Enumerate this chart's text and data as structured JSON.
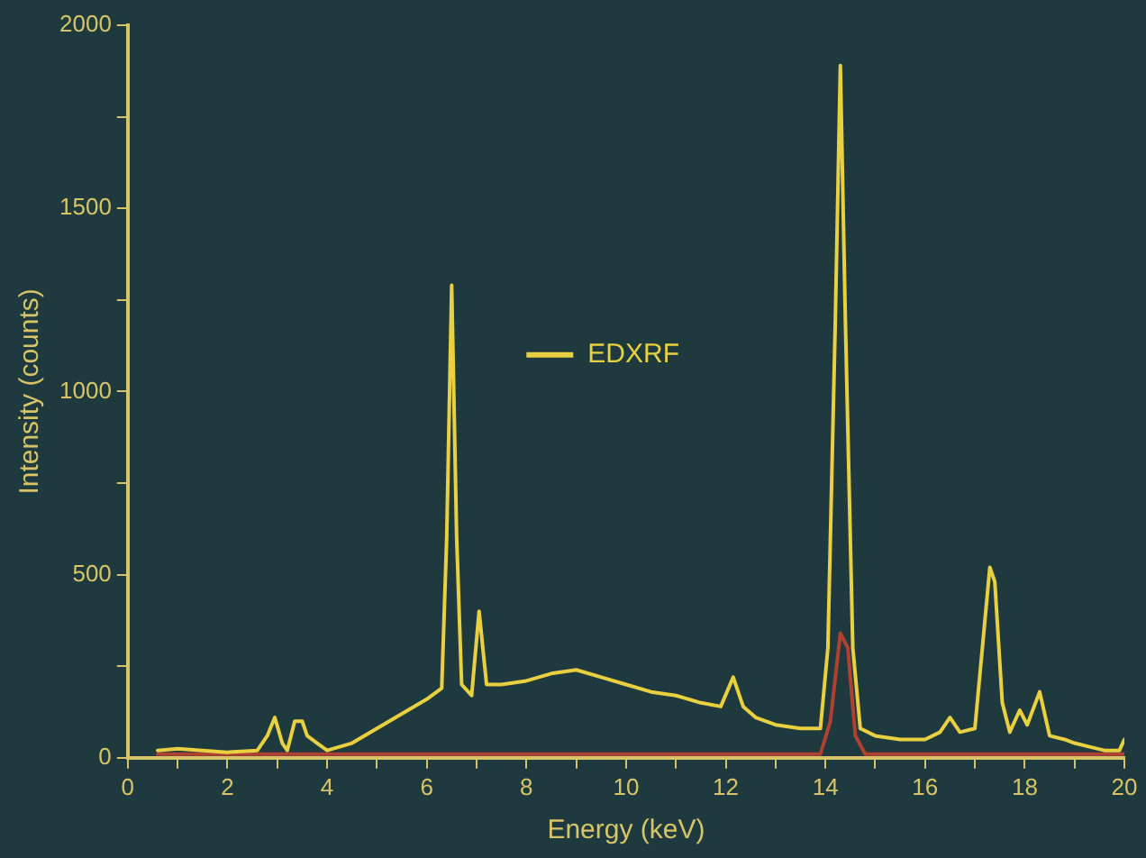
{
  "chart_data": {
    "type": "line",
    "xlabel": "Energy (keV)",
    "ylabel": "Intensity (counts)",
    "xlim": [
      0,
      20
    ],
    "xticks": [
      0,
      {
        "value": 1,
        "label": null
      },
      2,
      {
        "value": 3,
        "label": null
      },
      4,
      {
        "value": 5,
        "label": null
      },
      6,
      {
        "value": 7,
        "label": null
      },
      8,
      {
        "value": 9,
        "label": null
      },
      10,
      {
        "value": 11,
        "label": null
      },
      12,
      {
        "value": 13,
        "label": null
      },
      14,
      {
        "value": 15,
        "label": null
      },
      16,
      {
        "value": 17,
        "label": null
      },
      18,
      {
        "value": 19,
        "label": null
      },
      20
    ],
    "ylim": [
      0,
      2000
    ],
    "yticks": [
      0,
      {
        "value": 250,
        "label": null
      },
      500,
      {
        "value": 750,
        "label": null
      },
      1000,
      {
        "value": 1250,
        "label": null
      },
      1500,
      {
        "value": 1750,
        "label": null
      },
      2000
    ],
    "legend": "center",
    "marker": "none",
    "line_style": "solid",
    "series": [
      {
        "name": "EDXRF",
        "color": "#e8d040",
        "x": [
          0.6,
          1,
          2,
          2.6,
          2.8,
          2.95,
          3.1,
          3.2,
          3.35,
          3.5,
          3.6,
          3.8,
          4,
          4.5,
          5,
          5.5,
          6,
          6.3,
          6.4,
          6.5,
          6.6,
          6.7,
          6.9,
          7.05,
          7.2,
          7.5,
          8,
          8.5,
          9,
          9.5,
          10,
          10.5,
          11,
          11.5,
          11.9,
          12.15,
          12.35,
          12.6,
          13,
          13.5,
          13.9,
          14.05,
          14.2,
          14.3,
          14.4,
          14.55,
          14.7,
          15,
          15.5,
          16,
          16.3,
          16.5,
          16.7,
          17,
          17.15,
          17.3,
          17.4,
          17.55,
          17.7,
          17.9,
          18.05,
          18.3,
          18.5,
          18.8,
          19,
          19.3,
          19.6,
          19.9,
          20
        ],
        "values": [
          20,
          25,
          15,
          20,
          60,
          110,
          40,
          20,
          100,
          100,
          60,
          40,
          20,
          40,
          80,
          120,
          160,
          190,
          600,
          1290,
          600,
          200,
          170,
          400,
          200,
          200,
          210,
          230,
          240,
          220,
          200,
          180,
          170,
          150,
          140,
          220,
          140,
          110,
          90,
          80,
          80,
          300,
          1200,
          1890,
          1200,
          300,
          80,
          60,
          50,
          50,
          70,
          110,
          70,
          80,
          300,
          520,
          480,
          150,
          70,
          130,
          90,
          180,
          60,
          50,
          40,
          30,
          20,
          20,
          50
        ]
      },
      {
        "color": "#b04030",
        "x": [
          0.6,
          13.9,
          14.1,
          14.3,
          14.45,
          14.6,
          14.8,
          20
        ],
        "values": [
          10,
          10,
          100,
          340,
          300,
          60,
          10,
          10
        ]
      }
    ]
  }
}
